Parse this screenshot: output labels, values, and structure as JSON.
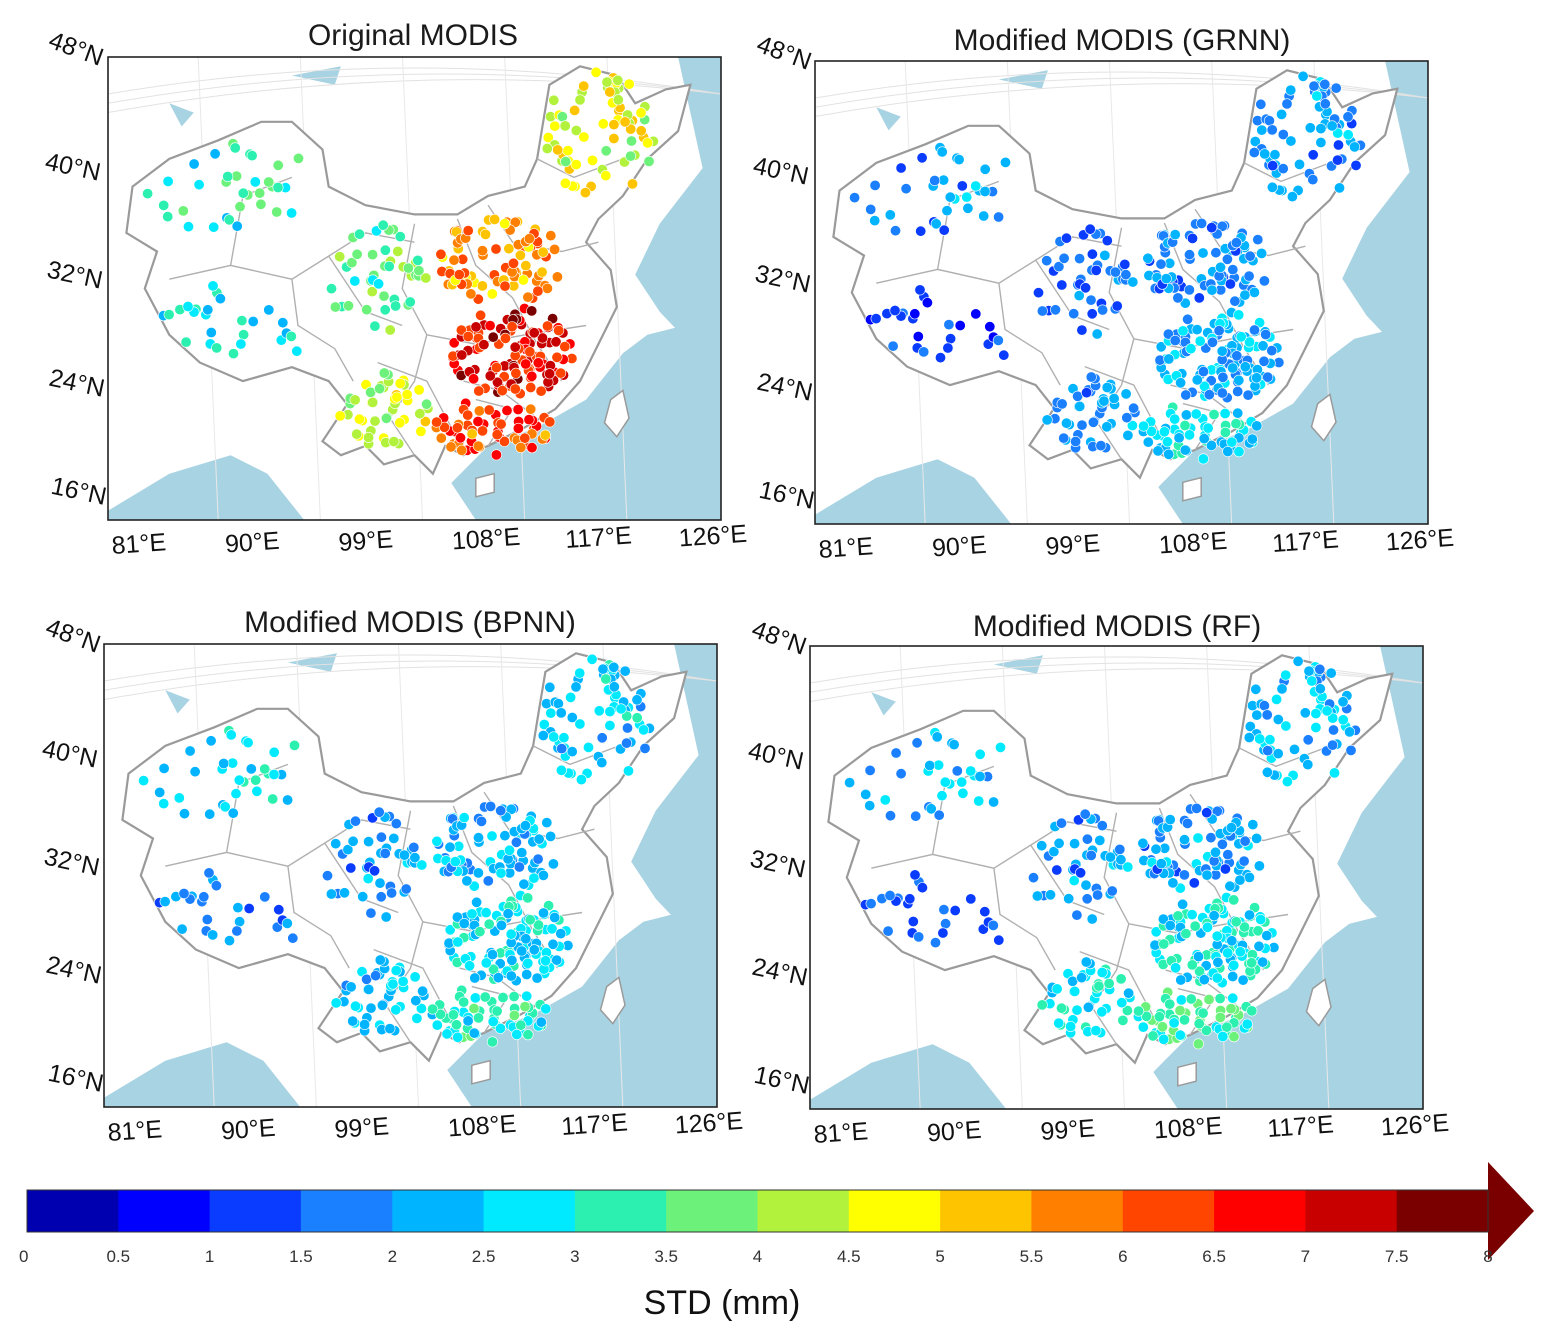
{
  "panels": [
    {
      "title": "Original MODIS",
      "scheme": "original"
    },
    {
      "title": "Modified MODIS (GRNN)",
      "scheme": "grnn"
    },
    {
      "title": "Modified MODIS (BPNN)",
      "scheme": "bpnn"
    },
    {
      "title": "Modified MODIS (RF)",
      "scheme": "rf"
    }
  ],
  "lat_labels": [
    "48°N",
    "40°N",
    "32°N",
    "24°N",
    "16°N"
  ],
  "lon_labels": [
    "81°E",
    "90°E",
    "99°E",
    "108°E",
    "117°E",
    "126°E"
  ],
  "colorbar": {
    "title": "STD (mm)",
    "ticks": [
      "0",
      "0.5",
      "1",
      "1.5",
      "2",
      "2.5",
      "3",
      "3.5",
      "4",
      "4.5",
      "5",
      "5.5",
      "6",
      "6.5",
      "7",
      "7.5",
      "8"
    ],
    "colors": [
      "#0000b0",
      "#0000ff",
      "#0a3cff",
      "#1a80ff",
      "#00b4ff",
      "#00eaff",
      "#2cf0b0",
      "#6cf27a",
      "#b2f23c",
      "#ffff00",
      "#ffc400",
      "#ff8000",
      "#ff4500",
      "#ff0000",
      "#c80000",
      "#7a0000"
    ]
  },
  "colors": {
    "sea": "#a8d3e3",
    "land": "#ffffff",
    "border": "#9a9a9a",
    "frame": "#222222"
  }
}
